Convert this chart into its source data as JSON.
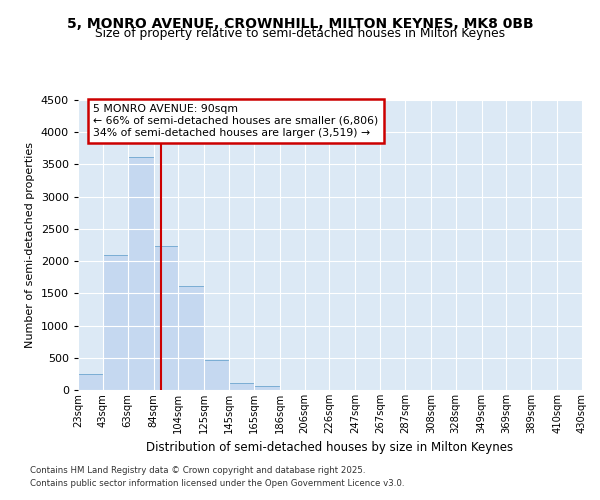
{
  "title_line1": "5, MONRO AVENUE, CROWNHILL, MILTON KEYNES, MK8 0BB",
  "title_line2": "Size of property relative to semi-detached houses in Milton Keynes",
  "xlabel": "Distribution of semi-detached houses by size in Milton Keynes",
  "ylabel": "Number of semi-detached properties",
  "property_size": 90,
  "annotation_title": "5 MONRO AVENUE: 90sqm",
  "annotation_line2": "← 66% of semi-detached houses are smaller (6,806)",
  "annotation_line3": "34% of semi-detached houses are larger (3,519) →",
  "footer_line1": "Contains HM Land Registry data © Crown copyright and database right 2025.",
  "footer_line2": "Contains public sector information licensed under the Open Government Licence v3.0.",
  "bar_color": "#c5d8f0",
  "bar_edge_color": "#7aadd4",
  "redline_color": "#cc0000",
  "bg_color": "#dce9f5",
  "grid_color": "#ffffff",
  "categories": [
    "23sqm",
    "43sqm",
    "63sqm",
    "84sqm",
    "104sqm",
    "125sqm",
    "145sqm",
    "165sqm",
    "186sqm",
    "206sqm",
    "226sqm",
    "247sqm",
    "267sqm",
    "287sqm",
    "308sqm",
    "328sqm",
    "349sqm",
    "369sqm",
    "389sqm",
    "410sqm",
    "430sqm"
  ],
  "bin_edges": [
    23,
    43,
    63,
    84,
    104,
    125,
    145,
    165,
    186,
    206,
    226,
    247,
    267,
    287,
    308,
    328,
    349,
    369,
    389,
    410,
    430
  ],
  "values": [
    250,
    2100,
    3620,
    2230,
    1620,
    470,
    105,
    55,
    0,
    0,
    0,
    0,
    0,
    0,
    0,
    0,
    0,
    0,
    0,
    0
  ],
  "ylim": [
    0,
    4500
  ],
  "yticks": [
    0,
    500,
    1000,
    1500,
    2000,
    2500,
    3000,
    3500,
    4000,
    4500
  ]
}
